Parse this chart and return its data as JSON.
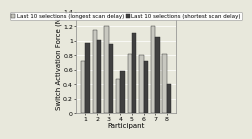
{
  "participants": [
    "1",
    "2",
    "3",
    "4",
    "5",
    "6",
    "7",
    "8"
  ],
  "longest_scan": [
    0.72,
    1.15,
    1.2,
    0.47,
    0.82,
    0.8,
    1.2,
    0.82
  ],
  "shortest_scan": [
    0.97,
    1.01,
    0.95,
    0.58,
    1.1,
    0.72,
    1.05,
    0.4
  ],
  "color_longest": "#c8c8c0",
  "color_shortest": "#404040",
  "legend_longest": "Last 10 selections (longest scan delay)",
  "legend_shortest": "Last 10 selections (shortest scan delay)",
  "xlabel": "Participant",
  "ylabel": "Switch Activation Force (N)",
  "ylim": [
    0,
    1.4
  ],
  "yticks": [
    0,
    0.2,
    0.4,
    0.6,
    0.8,
    1.0,
    1.2,
    1.4
  ],
  "ytick_labels": [
    "0",
    "0.2",
    "0.4",
    "0.6",
    "0.8",
    "1",
    "1.2",
    "1.4"
  ],
  "bar_width": 0.38,
  "background_color": "#e8e8dc",
  "plot_bg_color": "#e8e8dc",
  "legend_fontsize": 4.0,
  "axis_label_fontsize": 5.0,
  "tick_fontsize": 4.5,
  "edge_color": "#222222",
  "grid_color": "#ffffff"
}
